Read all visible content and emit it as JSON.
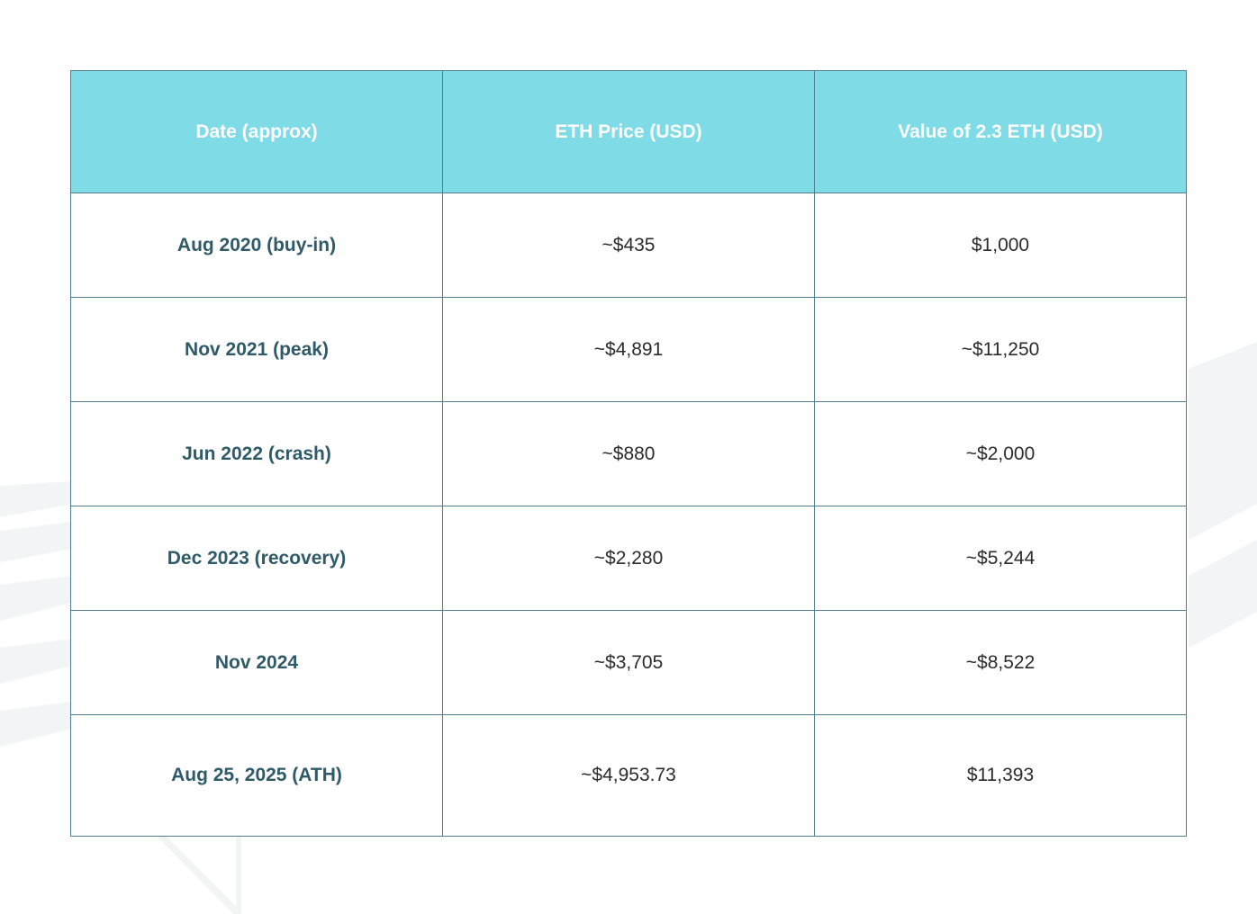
{
  "table": {
    "headers": [
      "Date (approx)",
      "ETH Price (USD)",
      "Value of 2.3 ETH (USD)"
    ],
    "rows": [
      [
        "Aug 2020 (buy-in)",
        "~$435",
        "$1,000"
      ],
      [
        "Nov 2021 (peak)",
        "~$4,891",
        "~$11,250"
      ],
      [
        "Jun 2022 (crash)",
        "~$880",
        "~$2,000"
      ],
      [
        "Dec 2023 (recovery)",
        "~$2,280",
        "~$5,244"
      ],
      [
        "Nov 2024",
        "~$3,705",
        "~$8,522"
      ],
      [
        "Aug 25, 2025 (ATH)",
        "~$4,953.73",
        "$11,393"
      ]
    ]
  },
  "colors": {
    "header_bg": "#7fdbe6",
    "border": "#4f7f8c",
    "date_text": "#2f5a68"
  }
}
